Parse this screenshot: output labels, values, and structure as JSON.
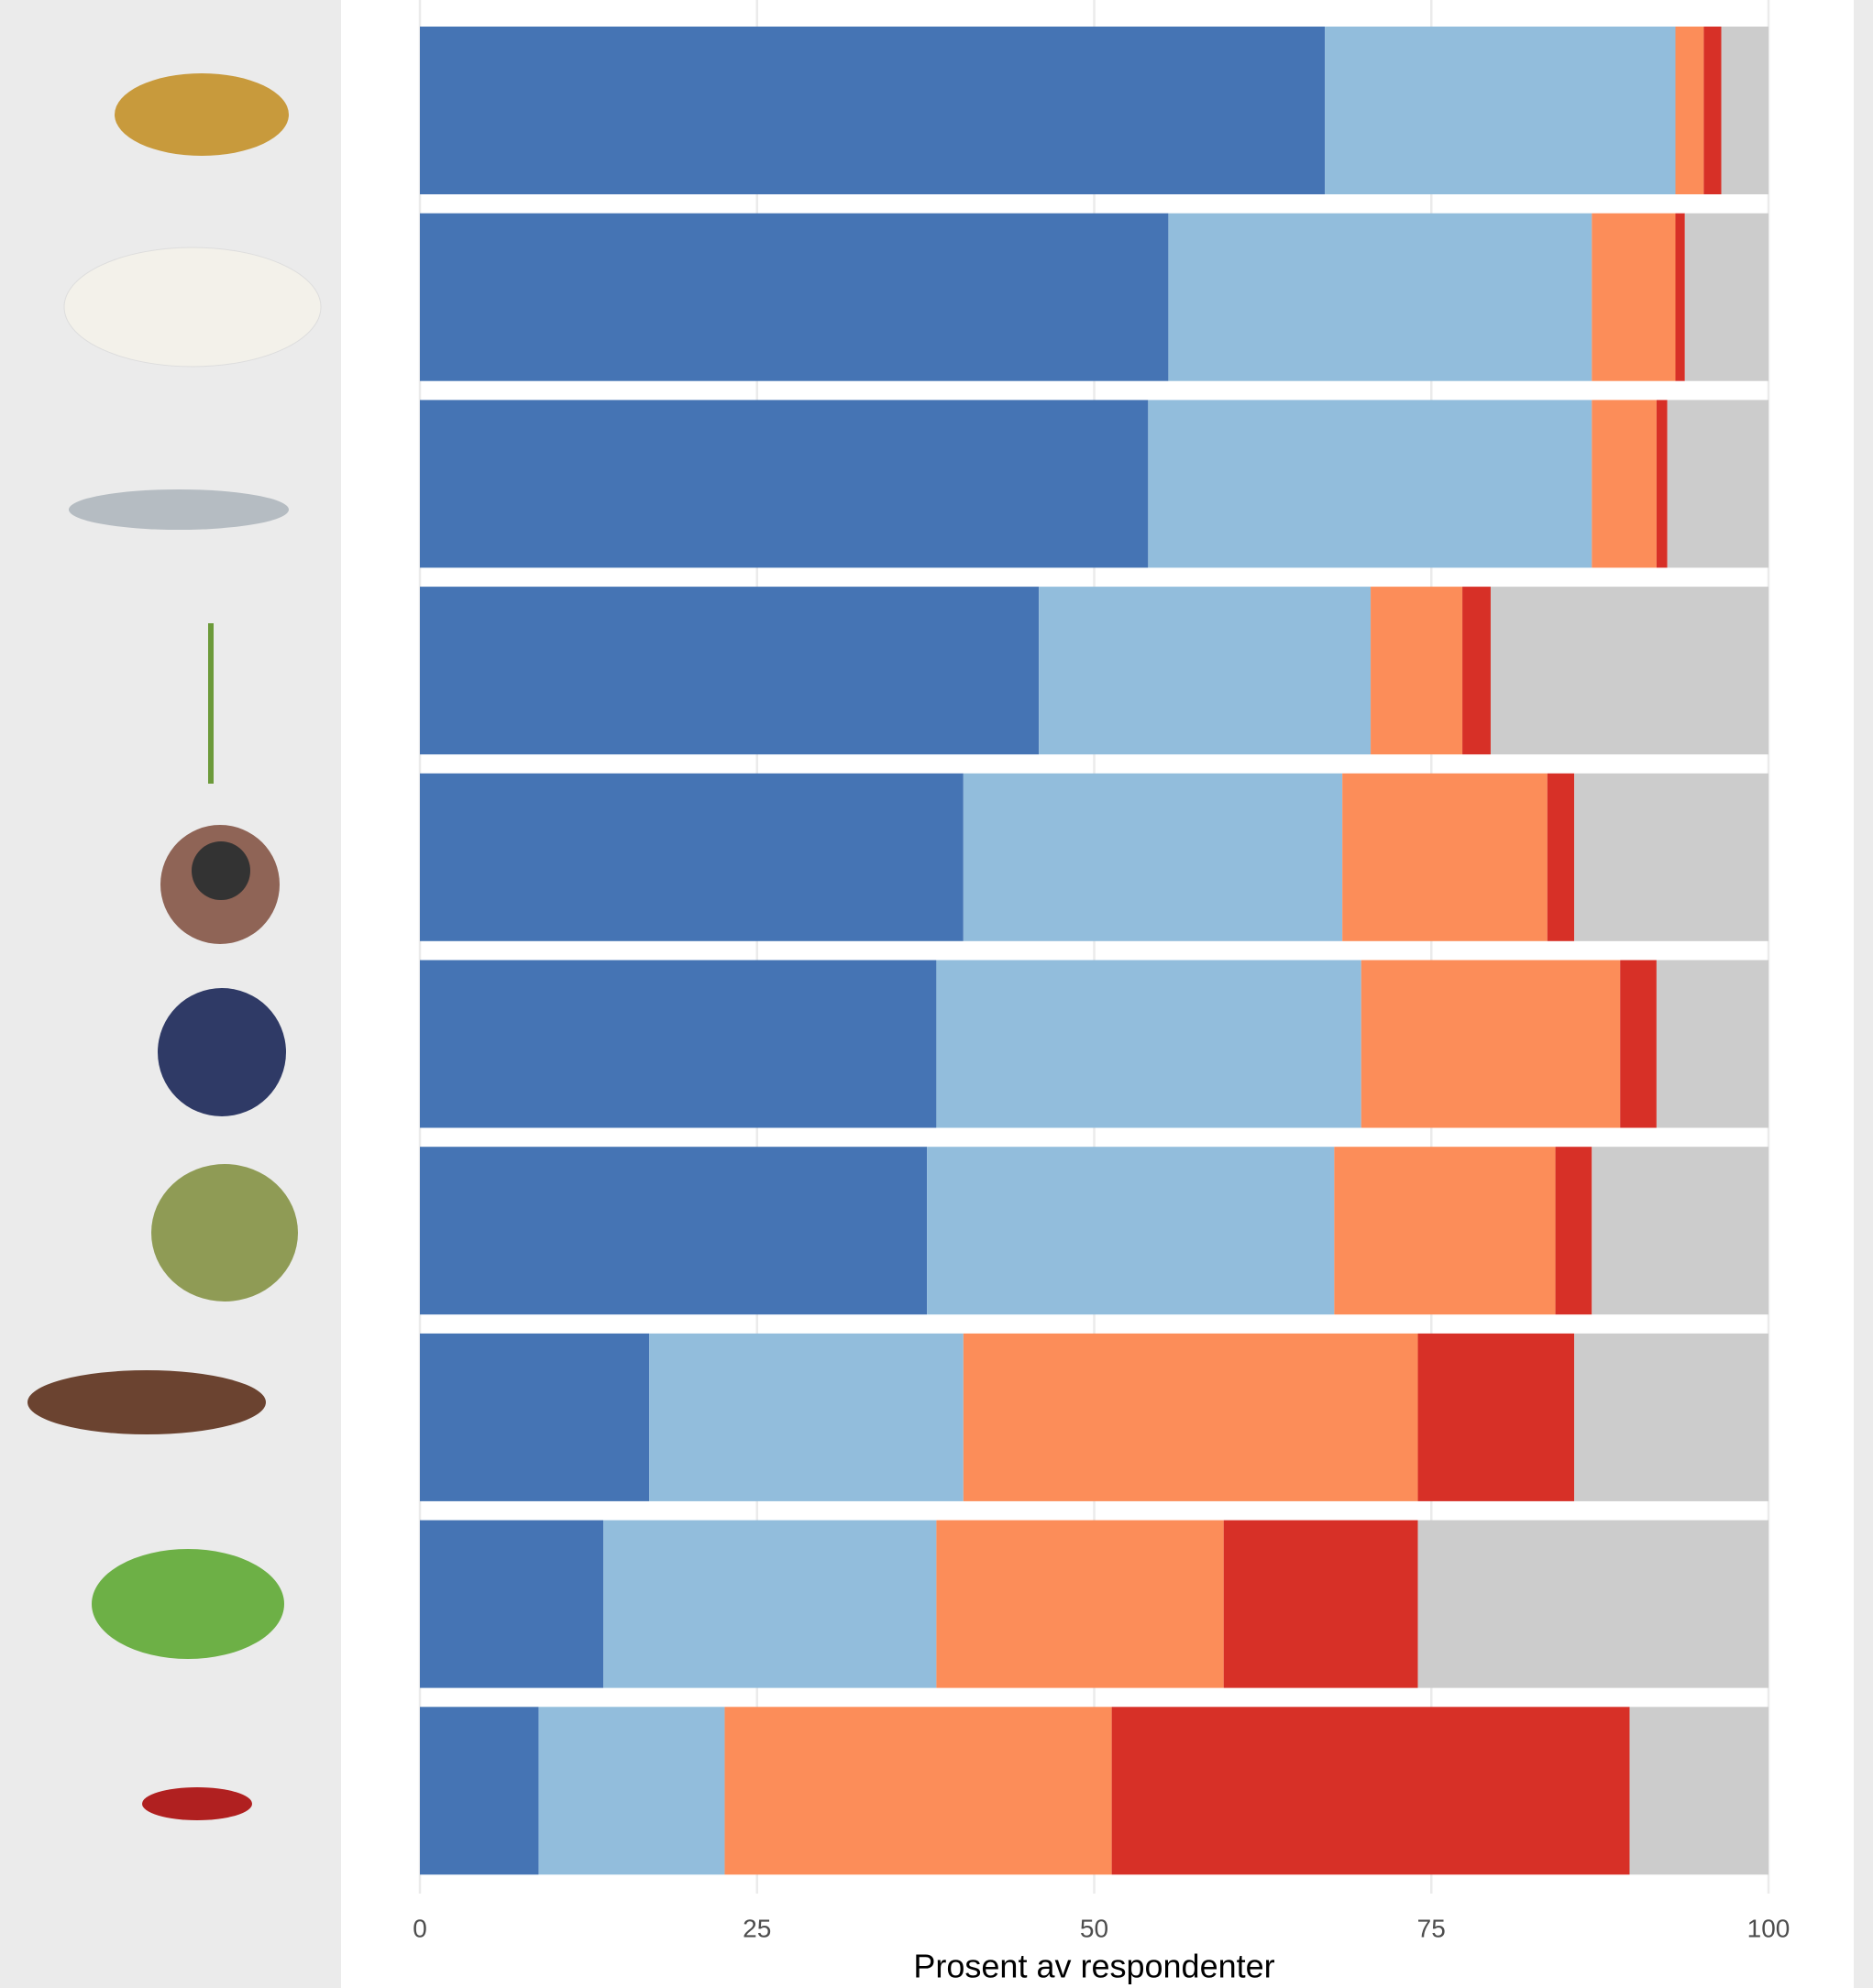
{
  "chart_data": {
    "type": "stacked-bar-horizontal",
    "x_label": "Prosent av respondenter",
    "categories": [
      null,
      null,
      null,
      null,
      null,
      null,
      null,
      null,
      null,
      null
    ],
    "series": [
      {
        "color": "#4574b4",
        "values": [
          67.1,
          55.5,
          54.0,
          45.9,
          40.3,
          38.3,
          37.6,
          17.0,
          13.6,
          8.8
        ]
      },
      {
        "color": "#92bddc",
        "values": [
          26.0,
          31.4,
          32.9,
          24.6,
          28.1,
          31.5,
          30.2,
          23.3,
          24.7,
          13.8
        ]
      },
      {
        "color": "#fc8d59",
        "values": [
          2.1,
          6.2,
          4.8,
          6.8,
          15.2,
          19.2,
          16.4,
          33.7,
          21.3,
          28.7
        ]
      },
      {
        "color": "#d73027",
        "values": [
          1.3,
          0.7,
          0.8,
          2.1,
          2.0,
          2.7,
          2.7,
          11.6,
          14.4,
          38.4
        ]
      },
      {
        "color": "#cccccc",
        "values": [
          3.5,
          6.2,
          7.5,
          20.6,
          14.4,
          8.3,
          13.1,
          14.4,
          26.0,
          10.3
        ]
      }
    ],
    "xlim": [
      0,
      100
    ],
    "xticks": [
      0,
      25,
      50,
      75,
      100
    ],
    "grid": true
  }
}
